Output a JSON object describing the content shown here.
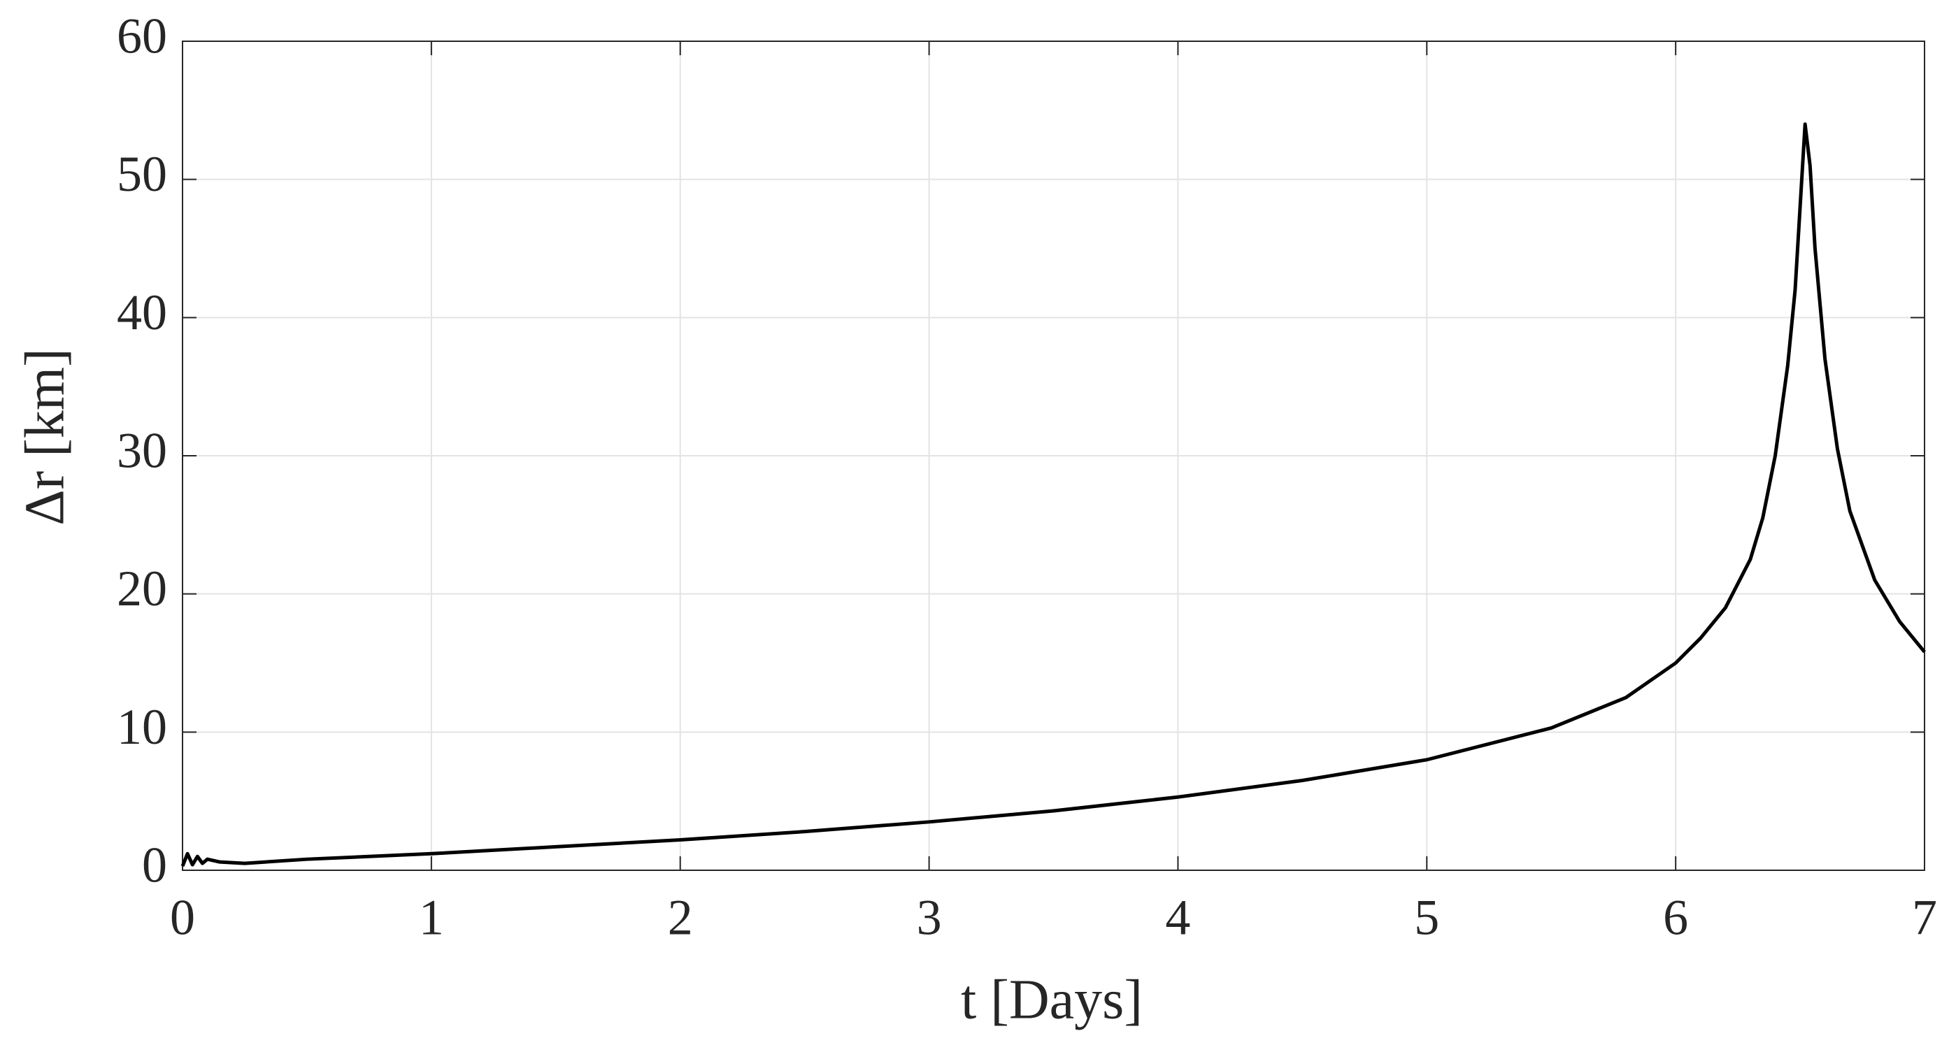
{
  "chart_data": {
    "type": "line",
    "x_label": "t [Days]",
    "y_label": "Δr [km]",
    "x": [
      0,
      0.02,
      0.04,
      0.06,
      0.08,
      0.1,
      0.15,
      0.25,
      0.5,
      1,
      1.5,
      2,
      2.5,
      3,
      3.5,
      4,
      4.5,
      5,
      5.5,
      5.8,
      6,
      6.1,
      6.2,
      6.3,
      6.35,
      6.4,
      6.45,
      6.48,
      6.5,
      6.52,
      6.54,
      6.56,
      6.6,
      6.65,
      6.7,
      6.8,
      6.9,
      7
    ],
    "series": [
      {
        "color": "#000000",
        "values": [
          0.3,
          1.2,
          0.4,
          1.0,
          0.5,
          0.8,
          0.6,
          0.5,
          0.8,
          1.2,
          1.7,
          2.2,
          2.8,
          3.5,
          4.3,
          5.3,
          6.5,
          8.0,
          10.3,
          12.5,
          15.0,
          16.8,
          19.0,
          22.5,
          25.5,
          30.0,
          36.5,
          42.0,
          48.0,
          54.0,
          51.0,
          45.0,
          37.0,
          30.5,
          26.0,
          21.0,
          18.0,
          15.8
        ]
      }
    ],
    "xlim": [
      0,
      7
    ],
    "xticks": [
      0,
      1,
      2,
      3,
      4,
      5,
      6,
      7
    ],
    "ylim": [
      0,
      60
    ],
    "yticks": [
      0,
      10,
      20,
      30,
      40,
      50,
      60
    ],
    "grid": true
  }
}
